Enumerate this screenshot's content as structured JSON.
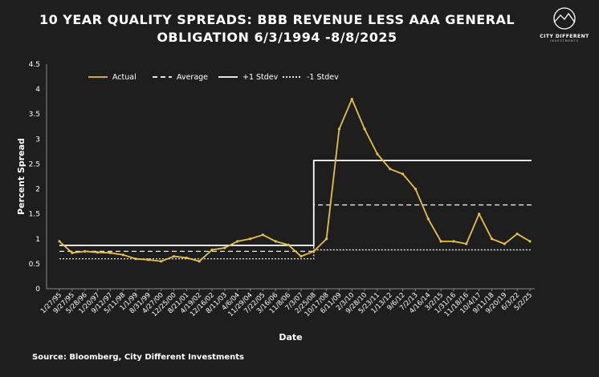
{
  "title": "10 YEAR QUALITY SPREADS: BBB REVENUE LESS AAA GENERAL OBLIGATION 6/3/1994 -8/8/2025",
  "title_line1": "10 YEAR QUALITY SPREADS: BBB REVENUE LESS AAA GENERAL",
  "title_line2": "OBLIGATION 6/3/1994 -8/8/2025",
  "logo": {
    "name": "CITY DIFFERENT",
    "tag": "INVESTMENTS"
  },
  "source": "Source: Bloomberg, City Different Investments",
  "colors": {
    "background": "#1e1e1e",
    "actual": "#e8c040",
    "lines": "#ffffff",
    "text": "#ffffff"
  },
  "chart_data": {
    "type": "line",
    "xlabel": "Date",
    "ylabel": "Percent Spread",
    "ylim": [
      0,
      4.5
    ],
    "yticks": [
      "0",
      "0.5",
      "1",
      "1.5",
      "2",
      "2.5",
      "3",
      "3.5",
      "4",
      "4.5"
    ],
    "grid": false,
    "legend_position": "top-left",
    "x_tick_labels": [
      "1/27/95",
      "9/27/95",
      "5/28/96",
      "1/20/97",
      "9/12/97",
      "5/11/98",
      "1/1/99",
      "8/31/99",
      "4/27/00",
      "12/25/00",
      "8/21/01",
      "4/19/02",
      "12/16/02",
      "8/11/03",
      "4/6/04",
      "11/29/04",
      "7/22/05",
      "3/16/06",
      "11/8/06",
      "7/3/07",
      "2/25/08",
      "10/17/08",
      "6/11/09",
      "2/3/10",
      "9/28/10",
      "5/23/11",
      "1/13/12",
      "9/6/12",
      "7/2/13",
      "4/16/14",
      "3/2/15",
      "1/31/16",
      "11/18/16",
      "10/4/17",
      "9/11/18",
      "9/20/19",
      "6/3/22",
      "5/2/25"
    ],
    "series": [
      {
        "name": "Actual",
        "style": "solid",
        "x": [
          "1/27/95",
          "9/27/95",
          "5/28/96",
          "1/20/97",
          "9/12/97",
          "5/11/98",
          "1/1/99",
          "8/31/99",
          "4/27/00",
          "12/25/00",
          "8/21/01",
          "4/19/02",
          "12/16/02",
          "8/11/03",
          "4/6/04",
          "11/29/04",
          "7/22/05",
          "3/16/06",
          "11/8/06",
          "7/3/07",
          "2/25/08",
          "10/17/08",
          "6/11/09",
          "2/3/10",
          "9/28/10",
          "5/23/11",
          "1/13/12",
          "9/6/12",
          "7/2/13",
          "4/16/14",
          "3/2/15",
          "1/31/16",
          "11/18/16",
          "10/4/17",
          "9/11/18",
          "9/20/19",
          "6/3/22",
          "5/2/25"
        ],
        "values": [
          0.95,
          0.72,
          0.75,
          0.73,
          0.72,
          0.68,
          0.6,
          0.58,
          0.55,
          0.65,
          0.62,
          0.55,
          0.78,
          0.82,
          0.95,
          1.0,
          1.08,
          0.95,
          0.88,
          0.65,
          0.75,
          1.0,
          3.2,
          3.8,
          3.2,
          2.7,
          2.4,
          2.3,
          2.0,
          1.4,
          0.95,
          0.95,
          0.9,
          1.5,
          1.0,
          0.9,
          1.1,
          0.95
        ]
      },
      {
        "name": "Average",
        "style": "dashed",
        "segments": [
          {
            "from": "1/27/95",
            "to": "2/25/08",
            "value": 0.75
          },
          {
            "from": "2/25/08",
            "to": "5/2/25",
            "value": 1.68
          }
        ]
      },
      {
        "name": "+1 Stdev",
        "style": "solid",
        "segments": [
          {
            "from": "1/27/95",
            "to": "2/25/08",
            "value": 0.87
          },
          {
            "from": "2/25/08",
            "to": "5/2/25",
            "value": 2.57
          }
        ]
      },
      {
        "name": "-1 Stdev",
        "style": "dotted",
        "segments": [
          {
            "from": "1/27/95",
            "to": "2/25/08",
            "value": 0.6
          },
          {
            "from": "2/25/08",
            "to": "5/2/25",
            "value": 0.78
          }
        ]
      }
    ]
  }
}
